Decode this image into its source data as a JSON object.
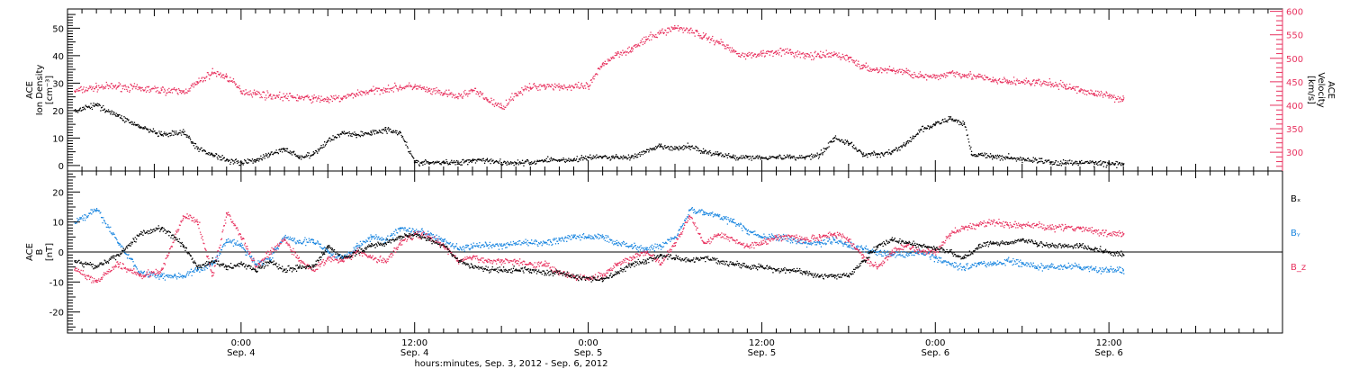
{
  "colors": {
    "black": "#000000",
    "pink": "#e8325f",
    "blue": "#1a86e0"
  },
  "x_axis": {
    "title": "hours:minutes, Sep.  3, 2012 - Sep.  6, 2012",
    "ticks": [
      {
        "hour": 24,
        "time": "0:00",
        "date": "Sep. 4"
      },
      {
        "hour": 36,
        "time": "12:00",
        "date": "Sep. 4"
      },
      {
        "hour": 48,
        "time": "0:00",
        "date": "Sep. 5"
      },
      {
        "hour": 60,
        "time": "12:00",
        "date": "Sep. 5"
      },
      {
        "hour": 72,
        "time": "0:00",
        "date": "Sep. 6"
      },
      {
        "hour": 84,
        "time": "12:00",
        "date": "Sep. 6"
      }
    ]
  },
  "panels": {
    "density": {
      "left_label": [
        "ACE",
        "Ion Density",
        "[cm⁻³]"
      ],
      "right_label": [
        "ACE",
        "Velocity",
        "[km/s]"
      ]
    },
    "field": {
      "left_label": [
        "ACE",
        "B",
        "[nT]"
      ],
      "legend": [
        "Bₓ",
        "Bᵧ",
        "B_z"
      ]
    }
  },
  "chart_data": [
    {
      "type": "scatter",
      "title": "",
      "xlabel": "hours:minutes, Sep.  3, 2012 - Sep.  6, 2012",
      "ylabel": "ACE Ion Density [cm-3]",
      "y2label": "ACE Velocity [km/s]",
      "xlim": [
        12,
        96
      ],
      "ylim": [
        -2,
        57
      ],
      "y2lim": [
        260,
        605
      ],
      "yticks": [
        0,
        10,
        20,
        30,
        40,
        50
      ],
      "y2ticks": [
        300,
        350,
        400,
        450,
        500,
        550,
        600
      ],
      "series": [
        {
          "name": "Ion Density",
          "axis": "left",
          "color": "#000000",
          "x": [
            12.5,
            14,
            15.5,
            17,
            18.5,
            20,
            21,
            22,
            23,
            24,
            25,
            26,
            27,
            28,
            29,
            30,
            31,
            32,
            33,
            34,
            35,
            36,
            36.5,
            37,
            38,
            39,
            40,
            41,
            42,
            43,
            44,
            45,
            46,
            47,
            48,
            49,
            50,
            51,
            52,
            53,
            54,
            55,
            56,
            57,
            58,
            59,
            60,
            61,
            62,
            63,
            64,
            65,
            66,
            67,
            68,
            69,
            70,
            71,
            72,
            73,
            74,
            74.5,
            75,
            76,
            77,
            78,
            79,
            80,
            81,
            82,
            83,
            84,
            85
          ],
          "y": [
            20,
            22,
            18,
            14,
            11,
            12,
            6,
            4,
            2,
            1,
            2,
            4,
            6,
            3,
            4,
            9,
            12,
            11,
            12,
            13,
            12,
            1,
            1,
            1,
            1,
            1,
            2,
            2,
            1,
            1,
            1,
            2,
            2,
            2,
            3,
            3,
            3,
            3,
            5,
            7,
            6,
            7,
            5,
            4,
            3,
            3,
            3,
            3,
            3,
            3,
            4,
            10,
            8,
            4,
            4,
            5,
            8,
            13,
            15,
            17,
            15,
            4,
            4,
            3,
            3,
            2,
            2,
            1,
            1,
            1,
            1,
            0.5,
            0.5
          ]
        },
        {
          "name": "Velocity",
          "axis": "right",
          "color": "#e8325f",
          "x": [
            12.5,
            14,
            15.5,
            17,
            18.5,
            20,
            21,
            22,
            23,
            24,
            25,
            26,
            27,
            28,
            29,
            30,
            31,
            32,
            33,
            34,
            35,
            36,
            37,
            38,
            39,
            40,
            41,
            42,
            43,
            44,
            45,
            46,
            47,
            48,
            49,
            50,
            51,
            52,
            53,
            54,
            55,
            56,
            57,
            58,
            59,
            60,
            61,
            62,
            63,
            64,
            65,
            66,
            67,
            68,
            69,
            70,
            71,
            72,
            73,
            74,
            75,
            76,
            77,
            78,
            79,
            80,
            81,
            82,
            83,
            84,
            85
          ],
          "y": [
            430,
            438,
            440,
            435,
            432,
            428,
            448,
            470,
            460,
            430,
            425,
            420,
            418,
            416,
            414,
            412,
            415,
            425,
            430,
            435,
            438,
            440,
            430,
            425,
            418,
            432,
            412,
            395,
            425,
            438,
            442,
            440,
            438,
            440,
            488,
            510,
            520,
            540,
            555,
            565,
            560,
            545,
            535,
            515,
            505,
            510,
            515,
            512,
            505,
            505,
            508,
            500,
            480,
            475,
            475,
            470,
            462,
            458,
            470,
            465,
            460,
            452,
            450,
            450,
            448,
            445,
            440,
            432,
            425,
            420,
            412
          ]
        }
      ]
    },
    {
      "type": "scatter",
      "title": "",
      "xlabel": "hours:minutes, Sep.  3, 2012 - Sep.  6, 2012",
      "ylabel": "ACE B [nT]",
      "xlim": [
        12,
        96
      ],
      "ylim": [
        -27,
        27
      ],
      "yticks": [
        -20,
        -10,
        0,
        10,
        20
      ],
      "series": [
        {
          "name": "Bx",
          "color": "#000000",
          "x": [
            12.5,
            14,
            15.5,
            17,
            18.5,
            20,
            21,
            22,
            23,
            24,
            25,
            26,
            27,
            28,
            29,
            30,
            31,
            32,
            33,
            34,
            35,
            36,
            37,
            38,
            39,
            40,
            41,
            42,
            43,
            44,
            45,
            46,
            47,
            48,
            49,
            50,
            51,
            52,
            53,
            54,
            55,
            56,
            57,
            58,
            59,
            60,
            61,
            62,
            63,
            64,
            65,
            66,
            67,
            68,
            69,
            70,
            71,
            72,
            73,
            74,
            75,
            76,
            77,
            78,
            79,
            80,
            81,
            82,
            83,
            84,
            85
          ],
          "y": [
            -3,
            -5,
            -1,
            6,
            8,
            2,
            -5,
            -3,
            -5,
            -4,
            -6,
            -3,
            -6,
            -5,
            -5,
            2,
            -2,
            0,
            2,
            3,
            5,
            6,
            4,
            2,
            -3,
            -5,
            -6,
            -6,
            -6,
            -6,
            -7,
            -7,
            -8,
            -9,
            -9,
            -7,
            -4,
            -3,
            -1,
            -2,
            -3,
            -2,
            -3,
            -4,
            -5,
            -5,
            -6,
            -6,
            -7,
            -8,
            -8,
            -8,
            -3,
            2,
            4,
            3,
            2,
            1,
            0,
            -2,
            2,
            3,
            3,
            4,
            3,
            2,
            2,
            2,
            1,
            0,
            -1
          ]
        },
        {
          "name": "By",
          "color": "#1a86e0",
          "x": [
            12.5,
            14,
            15.5,
            17,
            18.5,
            20,
            21,
            22,
            23,
            24,
            25,
            26,
            27,
            28,
            29,
            30,
            31,
            32,
            33,
            34,
            35,
            36,
            37,
            38,
            39,
            40,
            41,
            42,
            43,
            44,
            45,
            46,
            47,
            48,
            49,
            50,
            51,
            52,
            53,
            54,
            55,
            56,
            57,
            58,
            59,
            60,
            61,
            62,
            63,
            64,
            65,
            66,
            67,
            68,
            69,
            70,
            71,
            72,
            73,
            74,
            75,
            76,
            77,
            78,
            79,
            80,
            81,
            82,
            83,
            84,
            85
          ],
          "y": [
            10,
            14,
            3,
            -7,
            -8,
            -8,
            -6,
            -4,
            4,
            2,
            -4,
            -2,
            5,
            3,
            4,
            0,
            -2,
            2,
            5,
            4,
            8,
            7,
            6,
            4,
            1,
            2,
            2,
            2,
            3,
            3,
            3,
            4,
            5,
            5,
            5,
            3,
            2,
            1,
            2,
            5,
            14,
            13,
            12,
            10,
            7,
            5,
            5,
            4,
            3,
            3,
            4,
            2,
            1,
            0,
            -1,
            -1,
            0,
            -2,
            -4,
            -5,
            -4,
            -4,
            -3,
            -4,
            -5,
            -5,
            -5,
            -5,
            -6,
            -6,
            -6
          ]
        },
        {
          "name": "Bz",
          "color": "#e8325f",
          "x": [
            12.5,
            14,
            15.5,
            17,
            18.5,
            20,
            21,
            22,
            23,
            24,
            25,
            26,
            27,
            28,
            29,
            30,
            31,
            32,
            33,
            34,
            35,
            36,
            37,
            38,
            39,
            40,
            41,
            42,
            43,
            44,
            45,
            46,
            47,
            48,
            49,
            50,
            51,
            52,
            53,
            54,
            55,
            56,
            57,
            58,
            59,
            60,
            61,
            62,
            63,
            64,
            65,
            66,
            67,
            68,
            69,
            70,
            71,
            72,
            73,
            74,
            75,
            76,
            77,
            78,
            79,
            80,
            81,
            82,
            83,
            84,
            85
          ],
          "y": [
            -6,
            -10,
            -4,
            -8,
            -6,
            12,
            10,
            -8,
            13,
            5,
            -5,
            0,
            4,
            -3,
            -6,
            -2,
            -3,
            0,
            -2,
            -3,
            3,
            6,
            5,
            2,
            -3,
            -2,
            -3,
            -3,
            -3,
            -4,
            -4,
            -7,
            -8,
            -9,
            -8,
            -4,
            -2,
            0,
            -4,
            3,
            12,
            3,
            6,
            4,
            2,
            3,
            5,
            5,
            4,
            5,
            6,
            4,
            -2,
            -5,
            0,
            2,
            0,
            0,
            6,
            8,
            9,
            10,
            9,
            9,
            9,
            8,
            8,
            8,
            7,
            6,
            6
          ]
        }
      ]
    }
  ]
}
